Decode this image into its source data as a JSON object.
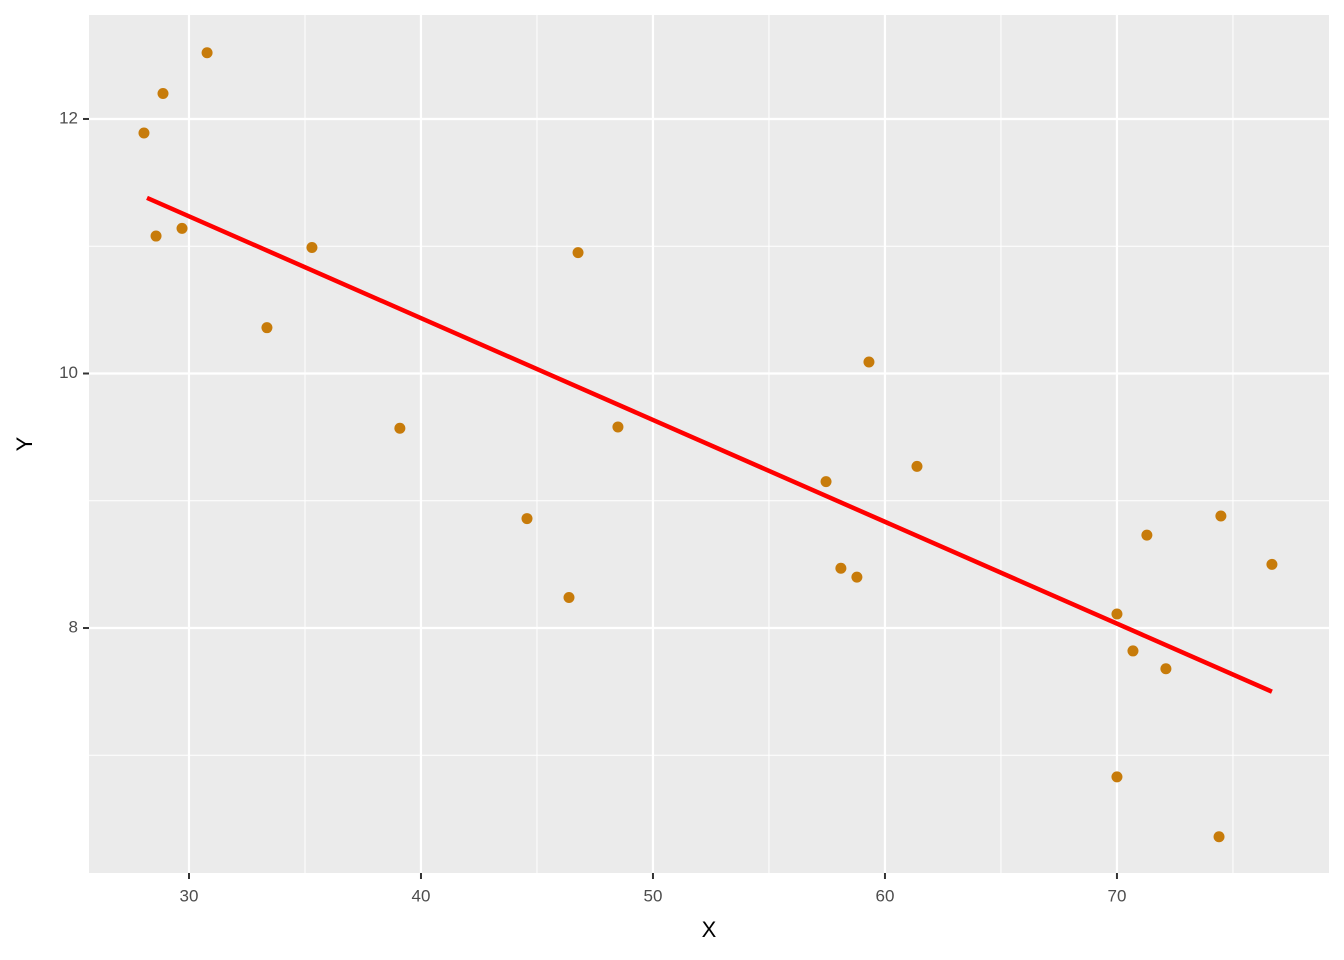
{
  "chart_data": {
    "type": "scatter",
    "x_label": "X",
    "y_label": "Y",
    "x": [
      28.06,
      28.88,
      30.78,
      28.58,
      29.7,
      35.3,
      33.36,
      39.09,
      44.57,
      46.38,
      46.77,
      48.49,
      57.46,
      58.1,
      58.79,
      59.31,
      61.38,
      70.0,
      70.69,
      71.29,
      72.11,
      70.0,
      74.4,
      74.48,
      76.68
    ],
    "values": [
      11.89,
      12.2,
      12.52,
      11.08,
      11.14,
      10.99,
      10.36,
      9.57,
      8.86,
      8.24,
      10.95,
      9.58,
      9.15,
      8.47,
      8.4,
      10.09,
      9.27,
      8.11,
      7.82,
      8.73,
      7.68,
      6.83,
      6.36,
      8.88,
      8.5
    ],
    "color": "#c77b0a",
    "fit": {
      "x": [
        28.19,
        76.68
      ],
      "values": [
        11.38,
        7.5
      ],
      "color": "#ff0000"
    },
    "xlim": [
      25.69,
      79.14
    ],
    "xticks": [
      30,
      40,
      50,
      60,
      70
    ],
    "ylim": [
      6.075,
      12.817
    ],
    "yticks": [
      8,
      10,
      12
    ],
    "grid": true
  }
}
